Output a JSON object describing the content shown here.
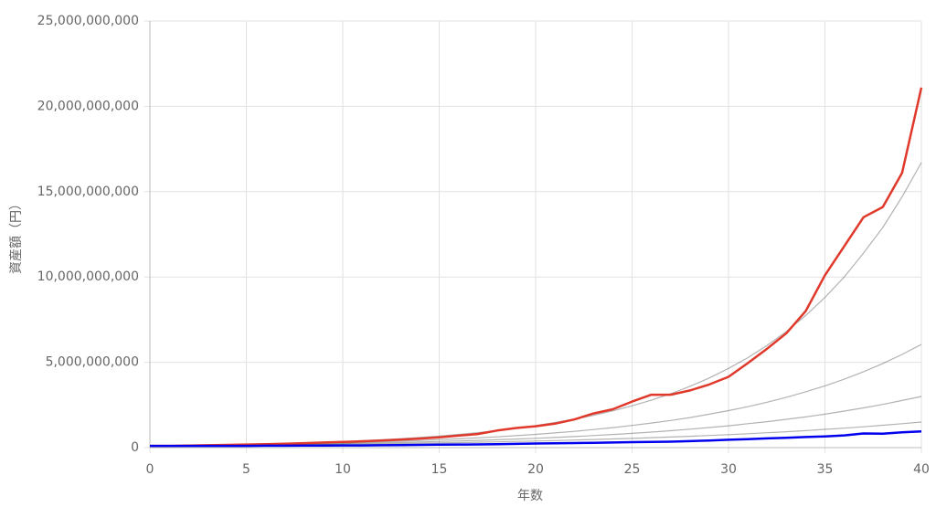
{
  "chart_data": {
    "type": "line",
    "x_label": "年数",
    "y_label": "資産額（円）",
    "x": [
      0,
      1,
      2,
      3,
      4,
      5,
      6,
      7,
      8,
      9,
      10,
      11,
      12,
      13,
      14,
      15,
      16,
      17,
      18,
      19,
      20,
      21,
      22,
      23,
      24,
      25,
      26,
      27,
      28,
      29,
      30,
      31,
      32,
      33,
      34,
      35,
      36,
      37,
      38,
      39,
      40
    ],
    "xlim": [
      0,
      40
    ],
    "xticks": [
      0,
      5,
      10,
      15,
      20,
      25,
      30,
      35,
      40
    ],
    "ylim": [
      0,
      25000000000
    ],
    "yticks": [
      0,
      {
        "value": 5000000000,
        "label": "5,000,000,000"
      },
      {
        "value": 10000000000,
        "label": "10,000,000,000"
      },
      {
        "value": 15000000000,
        "label": "15,000,000,000"
      },
      {
        "value": 20000000000,
        "label": "20,000,000,000"
      },
      {
        "value": 25000000000,
        "label": "25,000,000,000"
      }
    ],
    "grid": true,
    "series": [
      {
        "color": "rgba(0,0,0,0.3)",
        "values": [
          100000000.0,
          114000000.0,
          129000000.0,
          147000000.0,
          167000000.0,
          189000000.0,
          215000000.0,
          245000000.0,
          278000000.0,
          316000000.0,
          359000000.0,
          408000000.0,
          464000000.0,
          527000000.0,
          599000000.0,
          681000000.0,
          774000000.0,
          880000000.0,
          1000000000.0,
          1140000000.0,
          1290000000.0,
          1470000000.0,
          1670000000.0,
          1890000000.0,
          2150000000.0,
          2450000000.0,
          2780000000.0,
          3160000000.0,
          3590000000.0,
          4080000000.0,
          4640000000.0,
          5270000000.0,
          5990000000.0,
          6810000000.0,
          7740000000.0,
          8800000000.0,
          10000000000.0,
          11400000000.0,
          12900000000.0,
          14700000000.0,
          16700000000.0
        ]
      },
      {
        "color": "rgba(0,0,0,0.3)",
        "values": [
          100000000.0,
          111000000.0,
          123000000.0,
          136000000.0,
          151000000.0,
          167000000.0,
          185000000.0,
          205000000.0,
          227000000.0,
          251000000.0,
          278000000.0,
          309000000.0,
          342000000.0,
          379000000.0,
          420000000.0,
          465000000.0,
          515000000.0,
          571000000.0,
          633000000.0,
          701000000.0,
          777000000.0,
          861000000.0,
          954000000.0,
          1060000000.0,
          1170000000.0,
          1300000000.0,
          1440000000.0,
          1590000000.0,
          1760000000.0,
          1960000000.0,
          2170000000.0,
          2400000000.0,
          2660000000.0,
          2950000000.0,
          3270000000.0,
          3620000000.0,
          4010000000.0,
          4450000000.0,
          4930000000.0,
          5460000000.0,
          6050000000.0
        ]
      },
      {
        "color": "rgba(0,0,0,0.3)",
        "values": [
          100000000.0,
          109000000.0,
          119000000.0,
          129000000.0,
          141000000.0,
          153000000.0,
          166000000.0,
          181000000.0,
          197000000.0,
          215000000.0,
          234000000.0,
          255000000.0,
          277000000.0,
          302000000.0,
          329000000.0,
          358000000.0,
          390000000.0,
          424000000.0,
          462000000.0,
          503000000.0,
          547000000.0,
          596000000.0,
          649000000.0,
          706000000.0,
          769000000.0,
          837000000.0,
          912000000.0,
          993000000.0,
          1080000000.0,
          1180000000.0,
          1280000000.0,
          1400000000.0,
          1520000000.0,
          1660000000.0,
          1800000000.0,
          1960000000.0,
          2140000000.0,
          2330000000.0,
          2530000000.0,
          2760000000.0,
          3000000000.0
        ]
      },
      {
        "color": "rgba(0,0,0,0.3)",
        "values": [
          100000000.0,
          107000000.0,
          114000000.0,
          123000000.0,
          131000000.0,
          140000000.0,
          150000000.0,
          161000000.0,
          172000000.0,
          184000000.0,
          197000000.0,
          211000000.0,
          225000000.0,
          241000000.0,
          258000000.0,
          276000000.0,
          295000000.0,
          316000000.0,
          338000000.0,
          362000000.0,
          387000000.0,
          414000000.0,
          443000000.0,
          474000000.0,
          507000000.0,
          543000000.0,
          581000000.0,
          621000000.0,
          665000000.0,
          711000000.0,
          761000000.0,
          814000000.0,
          871000000.0,
          932000000.0,
          997000000.0,
          1070000000.0,
          1140000000.0,
          1220000000.0,
          1310000000.0,
          1400000000.0,
          1500000000.0
        ]
      },
      {
        "color": "#e0392b",
        "values": [
          100000000.0,
          100000000.0,
          120000000.0,
          140000000.0,
          160000000.0,
          180000000.0,
          200000000.0,
          230000000.0,
          260000000.0,
          300000000.0,
          330000000.0,
          370000000.0,
          420000000.0,
          470000000.0,
          530000000.0,
          600000000.0,
          700000000.0,
          800000000.0,
          1000000000.0,
          1150000000.0,
          1250000000.0,
          1400000000.0,
          1650000000.0,
          2000000000.0,
          2250000000.0,
          2700000000.0,
          3100000000.0,
          3100000000.0,
          3350000000.0,
          3700000000.0,
          4150000000.0,
          4950000000.0,
          5800000000.0,
          6700000000.0,
          8000000000.0,
          10100000000.0,
          11800000000.0,
          13500000000.0,
          14100000000.0,
          16100000000.0,
          21100000000.0
        ]
      },
      {
        "color": "#0000ee",
        "values": [
          100000000.0,
          100000000.0,
          100000000.0,
          100000000.0,
          100000000.0,
          100000000.0,
          110000000.0,
          110000000.0,
          120000000.0,
          120000000.0,
          130000000.0,
          130000000.0,
          140000000.0,
          150000000.0,
          160000000.0,
          170000000.0,
          180000000.0,
          190000000.0,
          200000000.0,
          220000000.0,
          240000000.0,
          250000000.0,
          270000000.0,
          280000000.0,
          300000000.0,
          320000000.0,
          330000000.0,
          350000000.0,
          380000000.0,
          420000000.0,
          460000000.0,
          500000000.0,
          540000000.0,
          580000000.0,
          620000000.0,
          660000000.0,
          720000000.0,
          830000000.0,
          820000000.0,
          900000000.0,
          950000000.0
        ]
      }
    ]
  }
}
